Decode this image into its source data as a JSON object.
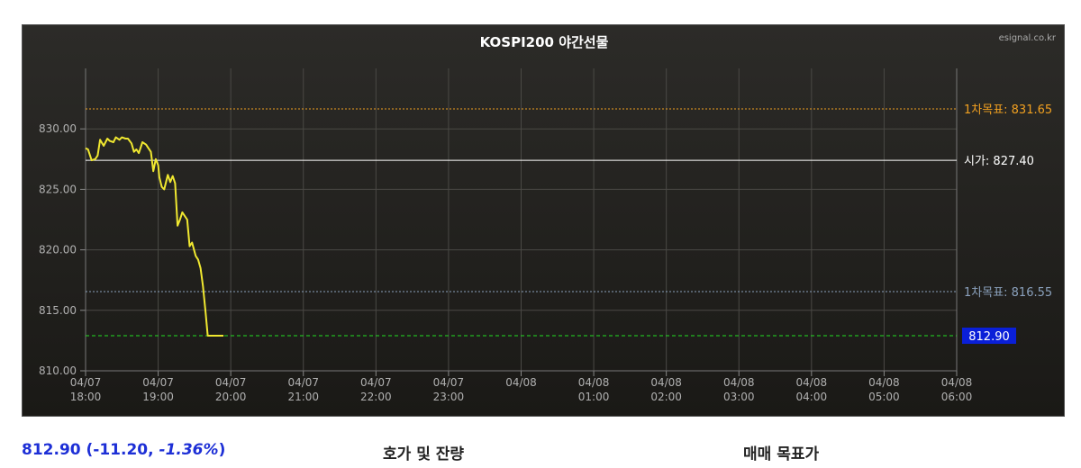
{
  "chart_data": {
    "type": "line",
    "title": "KOSPI200 야간선물",
    "watermark": "esignal.co.kr",
    "ylim": [
      810,
      835
    ],
    "yticks": [
      "830.00",
      "825.00",
      "820.00",
      "815.00",
      "810.00"
    ],
    "ytick_values": [
      830,
      825,
      820,
      815,
      810
    ],
    "xticks": [
      {
        "date": "04/07",
        "time": "18:00"
      },
      {
        "date": "04/07",
        "time": "19:00"
      },
      {
        "date": "04/07",
        "time": "20:00"
      },
      {
        "date": "04/07",
        "time": "21:00"
      },
      {
        "date": "04/07",
        "time": "22:00"
      },
      {
        "date": "04/07",
        "time": "23:00"
      },
      {
        "date": "04/08",
        "time": ""
      },
      {
        "date": "04/08",
        "time": "01:00"
      },
      {
        "date": "04/08",
        "time": "02:00"
      },
      {
        "date": "04/08",
        "time": "03:00"
      },
      {
        "date": "04/08",
        "time": "04:00"
      },
      {
        "date": "04/08",
        "time": "05:00"
      },
      {
        "date": "04/08",
        "time": "06:00"
      }
    ],
    "series": [
      {
        "color": "#f0e830",
        "x": [
          "18:00",
          "18:02",
          "18:05",
          "18:08",
          "18:10",
          "18:12",
          "18:15",
          "18:18",
          "18:20",
          "18:23",
          "18:25",
          "18:28",
          "18:30",
          "18:33",
          "18:35",
          "18:38",
          "18:40",
          "18:42",
          "18:44",
          "18:47",
          "18:50",
          "18:52",
          "18:54",
          "18:56",
          "18:58",
          "19:00",
          "19:01",
          "19:03",
          "19:05",
          "19:08",
          "19:10",
          "19:12",
          "19:14",
          "19:16",
          "19:18",
          "19:20",
          "19:22",
          "19:24",
          "19:26",
          "19:28",
          "19:31",
          "19:33",
          "19:35",
          "19:37",
          "19:39",
          "19:41",
          "19:43",
          "19:45",
          "19:47",
          "19:49",
          "19:51",
          "19:53",
          "19:54"
        ],
        "y": [
          828.4,
          828.3,
          827.4,
          827.5,
          827.8,
          829.1,
          828.6,
          829.2,
          829.0,
          828.9,
          829.3,
          829.1,
          829.3,
          829.2,
          829.2,
          828.8,
          828.1,
          828.3,
          828.0,
          828.9,
          828.7,
          828.4,
          828.1,
          826.5,
          827.5,
          827.0,
          826.0,
          825.2,
          825.0,
          826.2,
          825.6,
          826.1,
          825.5,
          822.0,
          822.5,
          823.1,
          822.8,
          822.5,
          820.3,
          820.6,
          819.5,
          819.2,
          818.5,
          817.0,
          815.0,
          812.9,
          812.9,
          812.9,
          812.9,
          812.9,
          812.9,
          812.9,
          812.9
        ]
      }
    ],
    "reference_lines": [
      {
        "label": "1차목표: 831.65",
        "value": 831.65,
        "color": "#f0a020",
        "style": "dotted"
      },
      {
        "label": "시가: 827.40",
        "value": 827.4,
        "color": "#ffffff",
        "style": "solid"
      },
      {
        "label": "1차목표: 816.55",
        "value": 816.55,
        "color": "#8aa0bc",
        "style": "dotted"
      },
      {
        "label": "812.90",
        "value": 812.9,
        "color": "#22dd22",
        "style": "dashed",
        "badge": "#0a1fd8"
      }
    ],
    "grid": true
  },
  "summary": {
    "price": "812.90",
    "change": "(-11.20, ",
    "pct": "-1.36%",
    "close": ")"
  },
  "links": {
    "orderbook": "호가 및 잔량",
    "target": "매매 목표가"
  }
}
